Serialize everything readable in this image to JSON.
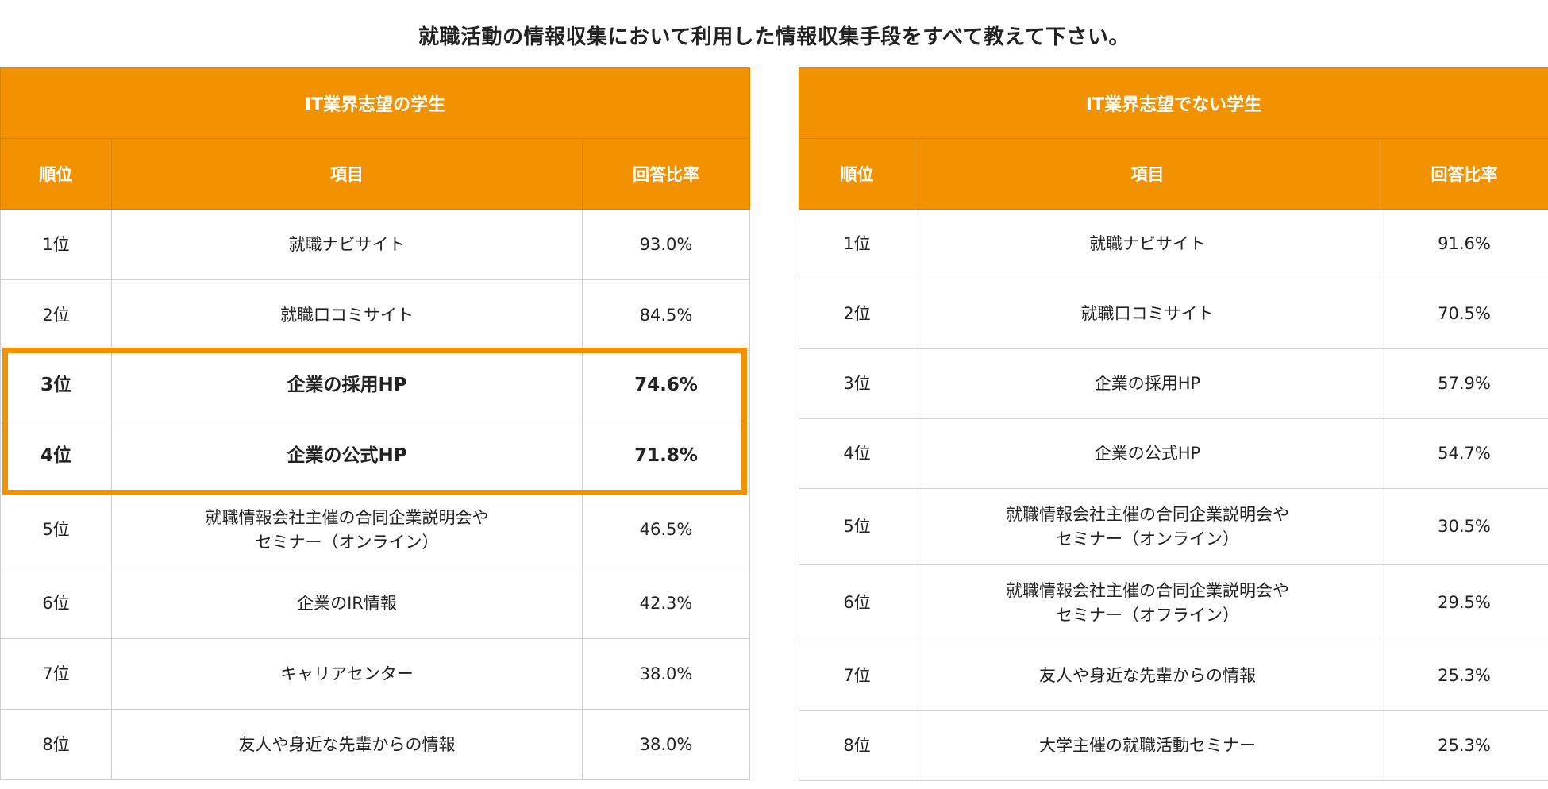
{
  "title": "就職活動の情報収集において利用した情報収集手段をすべて教えて下さい。",
  "colors": {
    "header_bg": "#f39200",
    "header_text": "#ffffff",
    "highlight_border": "#f39200",
    "grid": "#cfcfcf"
  },
  "chart_data": [
    {
      "type": "table",
      "title": "IT業界志望の学生",
      "columns": [
        "順位",
        "項目",
        "回答比率"
      ],
      "rows": [
        {
          "rank": "1位",
          "item": "就職ナビサイト",
          "ratio": "93.0%",
          "value": 93.0
        },
        {
          "rank": "2位",
          "item": "就職口コミサイト",
          "ratio": "84.5%",
          "value": 84.5
        },
        {
          "rank": "3位",
          "item": "企業の採用HP",
          "ratio": "74.6%",
          "value": 74.6,
          "highlighted": true
        },
        {
          "rank": "4位",
          "item": "企業の公式HP",
          "ratio": "71.8%",
          "value": 71.8,
          "highlighted": true
        },
        {
          "rank": "5位",
          "item": "就職情報会社主催の合同企業説明会や\nセミナー（オンライン）",
          "ratio": "46.5%",
          "value": 46.5
        },
        {
          "rank": "6位",
          "item": "企業のIR情報",
          "ratio": "42.3%",
          "value": 42.3
        },
        {
          "rank": "7位",
          "item": "キャリアセンター",
          "ratio": "38.0%",
          "value": 38.0
        },
        {
          "rank": "8位",
          "item": "友人や身近な先輩からの情報",
          "ratio": "38.0%",
          "value": 38.0
        }
      ]
    },
    {
      "type": "table",
      "title": "IT業界志望でない学生",
      "columns": [
        "順位",
        "項目",
        "回答比率"
      ],
      "rows": [
        {
          "rank": "1位",
          "item": "就職ナビサイト",
          "ratio": "91.6%",
          "value": 91.6
        },
        {
          "rank": "2位",
          "item": "就職口コミサイト",
          "ratio": "70.5%",
          "value": 70.5
        },
        {
          "rank": "3位",
          "item": "企業の採用HP",
          "ratio": "57.9%",
          "value": 57.9
        },
        {
          "rank": "4位",
          "item": "企業の公式HP",
          "ratio": "54.7%",
          "value": 54.7
        },
        {
          "rank": "5位",
          "item": "就職情報会社主催の合同企業説明会や\nセミナー（オンライン）",
          "ratio": "30.5%",
          "value": 30.5
        },
        {
          "rank": "6位",
          "item": "就職情報会社主催の合同企業説明会や\nセミナー（オフライン）",
          "ratio": "29.5%",
          "value": 29.5
        },
        {
          "rank": "7位",
          "item": "友人や身近な先輩からの情報",
          "ratio": "25.3%",
          "value": 25.3
        },
        {
          "rank": "8位",
          "item": "大学主催の就職活動セミナー",
          "ratio": "25.3%",
          "value": 25.3
        }
      ]
    }
  ]
}
